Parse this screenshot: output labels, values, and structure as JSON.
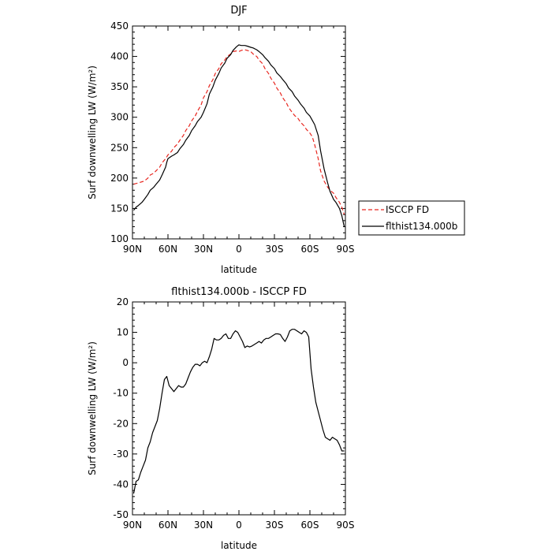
{
  "chart_data": [
    {
      "type": "line",
      "title": "DJF",
      "xlabel": "latitude",
      "ylabel": "Surf downwelling LW (W/m²)",
      "xlim": [
        -90,
        90
      ],
      "ylim": [
        100,
        450
      ],
      "x_tick_values": [
        -90,
        -60,
        -30,
        0,
        30,
        60,
        90
      ],
      "x_tick_labels": [
        "90N",
        "60N",
        "30N",
        "0",
        "30S",
        "60S",
        "90S"
      ],
      "y_ticks": [
        100,
        150,
        200,
        250,
        300,
        350,
        400,
        450
      ],
      "grid": false,
      "legend_position": "right",
      "series": [
        {
          "name": "ISCCP FD",
          "color": "#e8261f",
          "dash": "dashed",
          "x": [
            -89,
            -85,
            -80,
            -77,
            -75,
            -72,
            -70,
            -67,
            -65,
            -62,
            -60,
            -57,
            -55,
            -52,
            -50,
            -47,
            -45,
            -42,
            -40,
            -37,
            -35,
            -32,
            -30,
            -27,
            -25,
            -22,
            -20,
            -17,
            -15,
            -12,
            -10,
            -7,
            -5,
            -2,
            0,
            2,
            5,
            7,
            10,
            12,
            15,
            17,
            20,
            22,
            25,
            27,
            30,
            32,
            35,
            37,
            40,
            42,
            45,
            47,
            50,
            52,
            55,
            57,
            60,
            62,
            64,
            67,
            69,
            72,
            75,
            77,
            80,
            82,
            85,
            87,
            89
          ],
          "y": [
            190,
            192,
            195,
            200,
            205,
            208,
            212,
            218,
            225,
            232,
            238,
            244,
            250,
            256,
            262,
            270,
            278,
            286,
            294,
            302,
            310,
            320,
            332,
            342,
            352,
            362,
            372,
            380,
            388,
            394,
            400,
            404,
            408,
            409,
            408,
            410,
            411,
            410,
            408,
            404,
            400,
            394,
            388,
            380,
            372,
            364,
            356,
            348,
            340,
            332,
            324,
            316,
            308,
            303,
            298,
            292,
            286,
            280,
            274,
            268,
            255,
            232,
            212,
            195,
            185,
            180,
            175,
            168,
            160,
            152,
            140
          ]
        },
        {
          "name": "flthist134.000b",
          "color": "#000000",
          "dash": "solid",
          "x": [
            -89,
            -87,
            -85,
            -82,
            -80,
            -77,
            -75,
            -72,
            -70,
            -67,
            -65,
            -62,
            -61,
            -60,
            -57,
            -55,
            -52,
            -50,
            -47,
            -45,
            -42,
            -40,
            -37,
            -35,
            -32,
            -30,
            -27,
            -25,
            -22,
            -20,
            -17,
            -15,
            -12,
            -10,
            -7,
            -5,
            -2,
            0,
            2,
            5,
            7,
            10,
            12,
            15,
            17,
            20,
            22,
            25,
            27,
            30,
            32,
            35,
            37,
            40,
            42,
            45,
            47,
            50,
            52,
            55,
            57,
            60,
            62,
            64,
            67,
            69,
            72,
            75,
            77,
            80,
            82,
            85,
            87,
            89
          ],
          "y": [
            147,
            152,
            155,
            160,
            165,
            173,
            180,
            185,
            190,
            197,
            205,
            218,
            226,
            232,
            236,
            238,
            242,
            248,
            255,
            262,
            270,
            278,
            286,
            293,
            300,
            308,
            322,
            338,
            350,
            361,
            372,
            381,
            389,
            397,
            403,
            410,
            416,
            419,
            418,
            418,
            417,
            415,
            414,
            411,
            408,
            403,
            398,
            392,
            386,
            380,
            373,
            367,
            362,
            355,
            348,
            342,
            335,
            328,
            322,
            315,
            308,
            302,
            295,
            288,
            270,
            245,
            215,
            192,
            178,
            165,
            160,
            150,
            138,
            120
          ]
        }
      ]
    },
    {
      "type": "line",
      "title": "flthist134.000b - ISCCP FD",
      "xlabel": "latitude",
      "ylabel": "Surf downwelling LW (W/m²)",
      "xlim": [
        -90,
        90
      ],
      "ylim": [
        -50,
        20
      ],
      "x_tick_values": [
        -90,
        -60,
        -30,
        0,
        30,
        60,
        90
      ],
      "x_tick_labels": [
        "90N",
        "60N",
        "30N",
        "0",
        "30S",
        "60S",
        "90S"
      ],
      "y_ticks": [
        -50,
        -40,
        -30,
        -20,
        -10,
        0,
        10,
        20
      ],
      "grid": false,
      "series": [
        {
          "color": "#000000",
          "dash": "solid",
          "x": [
            -89,
            -87,
            -85,
            -83,
            -81,
            -79,
            -77,
            -75,
            -73,
            -71,
            -69,
            -67,
            -65,
            -63,
            -61,
            -59,
            -57,
            -55,
            -53,
            -51,
            -49,
            -47,
            -45,
            -43,
            -41,
            -39,
            -37,
            -35,
            -33,
            -31,
            -29,
            -27,
            -25,
            -23,
            -21,
            -19,
            -17,
            -15,
            -13,
            -11,
            -9,
            -7,
            -5,
            -3,
            -1,
            1,
            3,
            5,
            7,
            9,
            11,
            13,
            15,
            17,
            19,
            21,
            23,
            25,
            27,
            29,
            31,
            33,
            35,
            37,
            39,
            41,
            43,
            45,
            47,
            49,
            51,
            53,
            55,
            57,
            59,
            61,
            63,
            65,
            67,
            69,
            71,
            73,
            75,
            77,
            79,
            81,
            83,
            85,
            87,
            89
          ],
          "y": [
            -43,
            -39,
            -38.5,
            -36,
            -34,
            -32,
            -28,
            -26,
            -23,
            -21,
            -19,
            -15,
            -10,
            -5.5,
            -4.5,
            -7.5,
            -8.5,
            -9.5,
            -8.5,
            -7.5,
            -8,
            -8,
            -7,
            -5,
            -3,
            -1.5,
            -0.5,
            -0.5,
            -1,
            0,
            0.5,
            0,
            2,
            4.5,
            8,
            7.5,
            7.5,
            8,
            9,
            9.5,
            8,
            8,
            9.5,
            10.5,
            10,
            8.5,
            7,
            5,
            5.5,
            5.2,
            5.5,
            6,
            6.5,
            7,
            6.5,
            7.5,
            8,
            8,
            8.5,
            9,
            9.5,
            9.5,
            9.3,
            8,
            7,
            8.5,
            10.5,
            11,
            11,
            10.5,
            10,
            9.5,
            10.5,
            10,
            8.5,
            -2,
            -8,
            -13,
            -16,
            -19,
            -22,
            -24.5,
            -25,
            -25.5,
            -24.5,
            -25,
            -25.5,
            -27,
            -29,
            -29
          ]
        }
      ]
    }
  ]
}
